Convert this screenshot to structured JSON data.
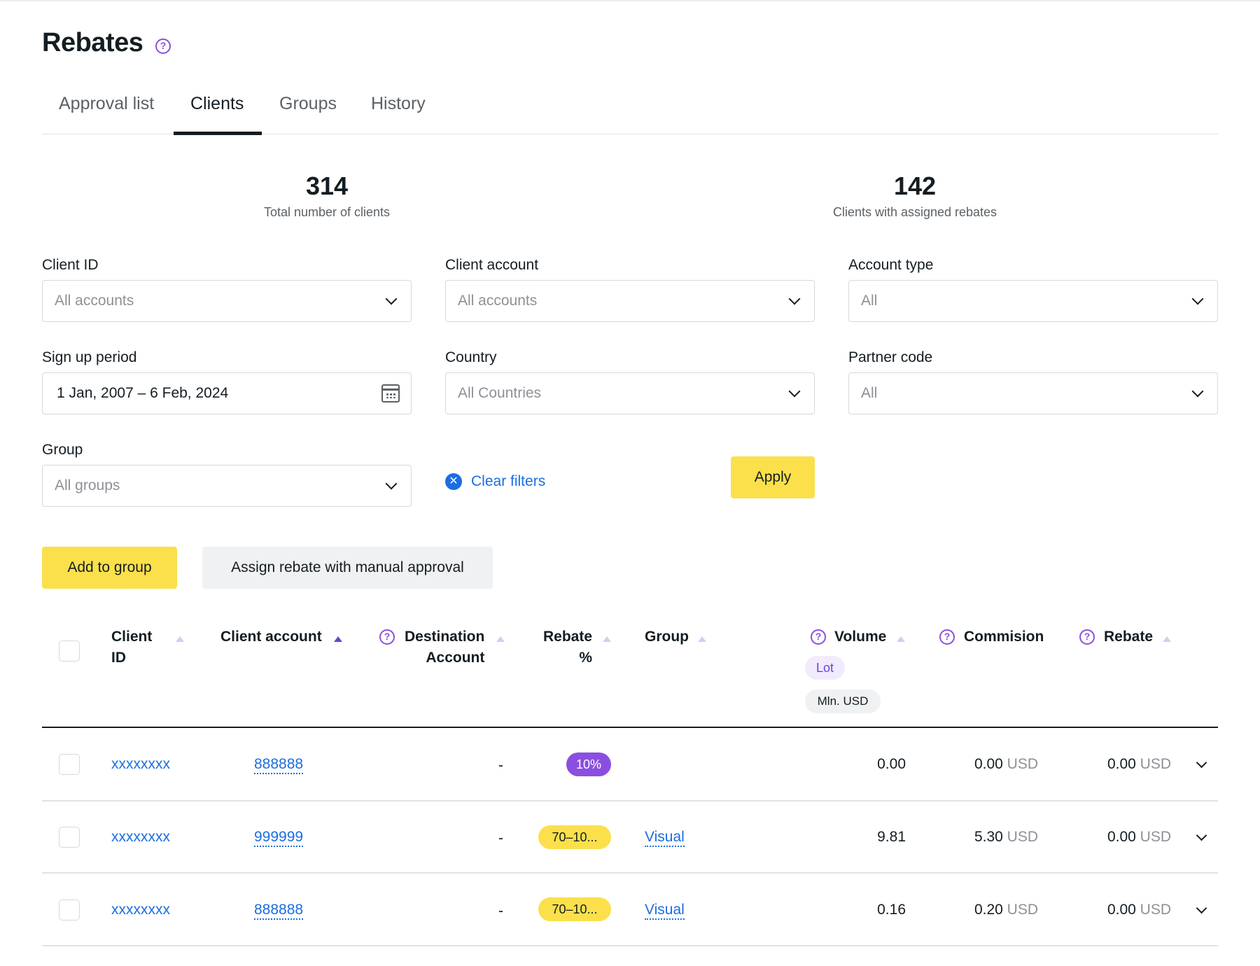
{
  "page": {
    "title": "Rebates"
  },
  "tabs": [
    {
      "label": "Approval list"
    },
    {
      "label": "Clients"
    },
    {
      "label": "Groups"
    },
    {
      "label": "History"
    }
  ],
  "active_tab": "Clients",
  "stats": [
    {
      "value": "314",
      "label": "Total number of clients"
    },
    {
      "value": "142",
      "label": "Clients with assigned rebates"
    }
  ],
  "filters": {
    "client_id": {
      "label": "Client ID",
      "value": "All accounts"
    },
    "client_account": {
      "label": "Client account",
      "value": "All accounts"
    },
    "account_type": {
      "label": "Account type",
      "value": "All"
    },
    "sign_up_period": {
      "label": "Sign up period",
      "value": "1 Jan, 2007 – 6 Feb, 2024"
    },
    "country": {
      "label": "Country",
      "value": "All Countries"
    },
    "partner_code": {
      "label": "Partner code",
      "value": "All"
    },
    "group": {
      "label": "Group",
      "value": "All groups"
    },
    "clear_label": "Clear filters",
    "apply_label": "Apply"
  },
  "actions": {
    "add_to_group": "Add to group",
    "assign_rebate": "Assign rebate with manual approval"
  },
  "table": {
    "headers": {
      "client_id_1": "Client",
      "client_id_2": "ID",
      "client_account": "Client account",
      "destination_1": "Destination",
      "destination_2": "Account",
      "rebate_pct_1": "Rebate",
      "rebate_pct_2": "%",
      "group": "Group",
      "volume": "Volume",
      "volume_unit_lot": "Lot",
      "volume_unit_usd": "Mln. USD",
      "commission": "Commision",
      "rebate": "Rebate"
    },
    "rows": [
      {
        "client_id": "xxxxxxxx",
        "client_account": "888888",
        "destination": "-",
        "rebate_pct": "10%",
        "rebate_pct_style": "purple",
        "group": "",
        "volume": "0.00",
        "commission": "0.00",
        "commission_currency": "USD",
        "rebate": "0.00",
        "rebate_currency": "USD"
      },
      {
        "client_id": "xxxxxxxx",
        "client_account": "999999",
        "destination": "-",
        "rebate_pct": "70–10...",
        "rebate_pct_style": "yellow",
        "group": "Visual",
        "volume": "9.81",
        "commission": "5.30",
        "commission_currency": "USD",
        "rebate": "0.00",
        "rebate_currency": "USD"
      },
      {
        "client_id": "xxxxxxxx",
        "client_account": "888888",
        "destination": "-",
        "rebate_pct": "70–10...",
        "rebate_pct_style": "yellow",
        "group": "Visual",
        "volume": "0.16",
        "commission": "0.20",
        "commission_currency": "USD",
        "rebate": "0.00",
        "rebate_currency": "USD"
      }
    ]
  },
  "colors": {
    "accent_yellow": "#fbe04b",
    "accent_purple": "#8a4fe0",
    "link_blue": "#1b6ee0",
    "text_dark": "#141d22"
  }
}
